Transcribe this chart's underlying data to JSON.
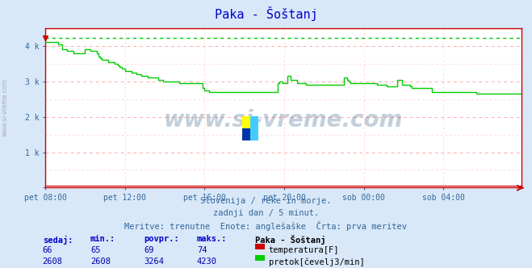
{
  "title": "Paka - Šoštanj",
  "bg_color": "#d8e8f8",
  "plot_bg_color": "#ffffff",
  "grid_color_major": "#ffaaaa",
  "grid_color_minor": "#ffcccc",
  "x_labels": [
    "pet 08:00",
    "pet 12:00",
    "pet 16:00",
    "pet 20:00",
    "sob 00:00",
    "sob 04:00"
  ],
  "x_ticks": [
    0,
    48,
    96,
    144,
    192,
    240
  ],
  "total_points": 288,
  "y_ticks": [
    0,
    1000,
    2000,
    3000,
    4000
  ],
  "y_tick_labels": [
    "",
    "1 k",
    "2 k",
    "3 k",
    "4 k"
  ],
  "ylim": [
    0,
    4500
  ],
  "temp_color": "#cc0000",
  "flow_color": "#00cc00",
  "flow_max": 4230,
  "subtitle1": "Slovenija / reke in morje.",
  "subtitle2": "zadnji dan / 5 minut.",
  "subtitle3": "Meritve: trenutne  Enote: anglešaške  Črta: prva meritev",
  "legend_title": "Paka - Šoštanj",
  "legend_items": [
    {
      "label": "temperatura[F]",
      "color": "#cc0000"
    },
    {
      "label": "pretok[čevelj3/min]",
      "color": "#00cc00"
    }
  ],
  "table_headers": [
    "sedaj:",
    "min.:",
    "povpr.:",
    "maks.:"
  ],
  "table_row1": [
    "66",
    "65",
    "69",
    "74"
  ],
  "table_row2": [
    "2608",
    "2608",
    "3264",
    "4230"
  ],
  "watermark": "www.si-vreme.com",
  "watermark_color": "#3a6186",
  "side_label": "www.si-vreme.com",
  "flow_data": [
    4100,
    4100,
    4100,
    4100,
    4100,
    4100,
    4100,
    4100,
    4050,
    4050,
    3900,
    3900,
    3900,
    3850,
    3850,
    3850,
    3850,
    3800,
    3800,
    3800,
    3800,
    3800,
    3800,
    3800,
    3900,
    3900,
    3900,
    3850,
    3850,
    3850,
    3850,
    3800,
    3700,
    3650,
    3600,
    3600,
    3600,
    3600,
    3550,
    3550,
    3550,
    3550,
    3500,
    3500,
    3450,
    3400,
    3350,
    3350,
    3300,
    3300,
    3300,
    3300,
    3250,
    3250,
    3250,
    3200,
    3200,
    3200,
    3150,
    3150,
    3150,
    3150,
    3100,
    3100,
    3100,
    3100,
    3100,
    3100,
    3050,
    3050,
    3050,
    3000,
    3000,
    3000,
    3000,
    3000,
    3000,
    3000,
    3000,
    3000,
    3000,
    2950,
    2950,
    2950,
    2950,
    2950,
    2950,
    2950,
    2950,
    2950,
    2950,
    2950,
    2950,
    2950,
    2950,
    2800,
    2750,
    2750,
    2750,
    2700,
    2700,
    2700,
    2700,
    2700,
    2700,
    2700,
    2700,
    2700,
    2700,
    2700,
    2700,
    2700,
    2700,
    2700,
    2700,
    2700,
    2700,
    2700,
    2700,
    2700,
    2700,
    2700,
    2700,
    2700,
    2700,
    2700,
    2700,
    2700,
    2700,
    2700,
    2700,
    2700,
    2700,
    2700,
    2700,
    2700,
    2700,
    2700,
    2700,
    2700,
    2950,
    3000,
    3000,
    2950,
    2950,
    2950,
    3150,
    3150,
    3050,
    3050,
    3050,
    3050,
    2950,
    2950,
    2950,
    2950,
    2950,
    2900,
    2900,
    2900,
    2900,
    2900,
    2900,
    2900,
    2900,
    2900,
    2900,
    2900,
    2900,
    2900,
    2900,
    2900,
    2900,
    2900,
    2900,
    2900,
    2900,
    2900,
    2900,
    2900,
    3100,
    3100,
    3050,
    3000,
    2950,
    2950,
    2950,
    2950,
    2950,
    2950,
    2950,
    2950,
    2950,
    2950,
    2950,
    2950,
    2950,
    2950,
    2950,
    2950,
    2900,
    2900,
    2900,
    2900,
    2900,
    2900,
    2850,
    2850,
    2850,
    2850,
    2850,
    2850,
    3050,
    3050,
    3050,
    2900,
    2900,
    2900,
    2900,
    2900,
    2850,
    2800,
    2800,
    2800,
    2800,
    2800,
    2800,
    2800,
    2800,
    2800,
    2800,
    2800,
    2800,
    2700,
    2700,
    2700,
    2700,
    2700,
    2700,
    2700,
    2700,
    2700,
    2700,
    2700,
    2700,
    2700,
    2700,
    2700,
    2700,
    2700,
    2700,
    2700,
    2700,
    2700,
    2700,
    2700,
    2700,
    2700,
    2700,
    2700,
    2650,
    2650,
    2650,
    2650,
    2650,
    2650,
    2650,
    2650,
    2650,
    2650,
    2650,
    2650,
    2650,
    2650,
    2650,
    2650,
    2650,
    2650,
    2650,
    2650,
    2650,
    2650,
    2650,
    2650,
    2650,
    2650,
    2650,
    2650
  ]
}
